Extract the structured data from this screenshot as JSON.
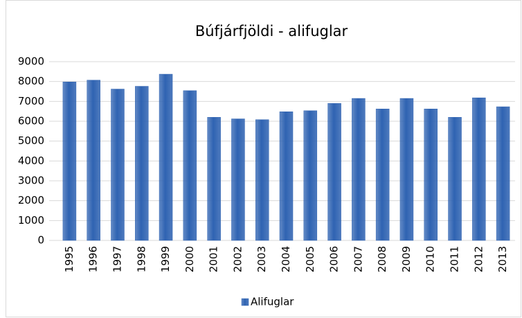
{
  "chart_data": {
    "type": "bar",
    "title": "Búfjárfjöldi - alifuglar",
    "categories": [
      "1995",
      "1996",
      "1997",
      "1998",
      "1999",
      "2000",
      "2001",
      "2002",
      "2003",
      "2004",
      "2005",
      "2006",
      "2007",
      "2008",
      "2009",
      "2010",
      "2011",
      "2012",
      "2013"
    ],
    "series": [
      {
        "name": "Alifuglar",
        "color": "#2f63b2",
        "values": [
          7980,
          8070,
          7620,
          7760,
          8370,
          7540,
          6200,
          6120,
          6080,
          6480,
          6530,
          6900,
          7150,
          6620,
          7150,
          6620,
          6200,
          7180,
          6730
        ]
      }
    ],
    "ylim": [
      0,
      9000
    ],
    "yticks": [
      0,
      1000,
      2000,
      3000,
      4000,
      5000,
      6000,
      7000,
      8000,
      9000
    ],
    "grid": true,
    "legend": "bottom"
  }
}
